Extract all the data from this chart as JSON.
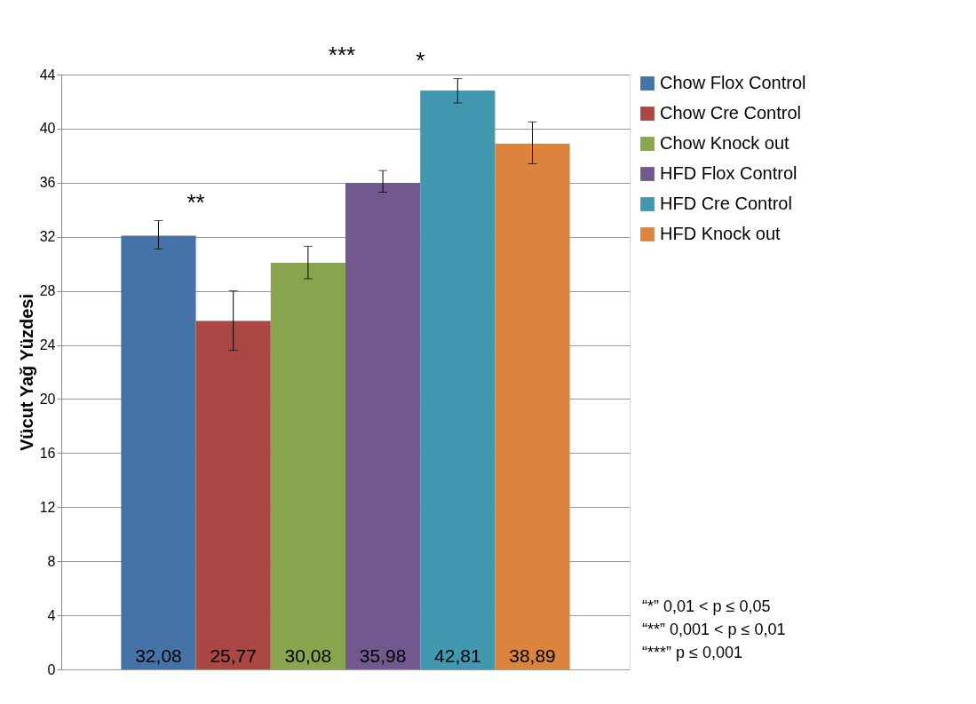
{
  "chart_data": {
    "type": "bar",
    "ylabel": "Vücut Yağ Yüzdesi",
    "categories": [
      null
    ],
    "series": [
      {
        "name": "Chow Flox Control",
        "color": "#4572a7",
        "values": [
          32.08
        ],
        "errors": [
          [
            31.1,
            33.2
          ]
        ]
      },
      {
        "name": "Chow Cre Control",
        "color": "#aa4643",
        "values": [
          25.77
        ],
        "errors": [
          [
            23.6,
            28.0
          ]
        ]
      },
      {
        "name": "Chow Knock out",
        "color": "#89a54e",
        "values": [
          30.08
        ],
        "errors": [
          [
            28.9,
            31.3
          ]
        ]
      },
      {
        "name": "HFD Flox Control",
        "color": "#71588f",
        "values": [
          35.98
        ],
        "errors": [
          [
            35.3,
            36.9
          ]
        ]
      },
      {
        "name": "HFD Cre Control",
        "color": "#4198af",
        "values": [
          42.81
        ],
        "errors": [
          [
            41.9,
            43.7
          ]
        ]
      },
      {
        "name": "HFD Knock out",
        "color": "#db843d",
        "values": [
          38.89
        ],
        "errors": [
          [
            37.4,
            40.5
          ]
        ]
      }
    ],
    "value_labels": [
      "32,08",
      "25,77",
      "30,08",
      "35,98",
      "42,81",
      "38,89"
    ],
    "ylim": [
      0,
      44
    ],
    "yticks": [
      0,
      4,
      8,
      12,
      16,
      20,
      24,
      28,
      32,
      36,
      40,
      44
    ],
    "grid": "y",
    "legend": "right",
    "tick_labels": "y",
    "annotations": [
      "**",
      "***",
      "*",
      "“*” 0,01 < p ≤ 0,05",
      "“**” 0,001 < p ≤ 0,01",
      "“***” p ≤ 0,001"
    ]
  }
}
